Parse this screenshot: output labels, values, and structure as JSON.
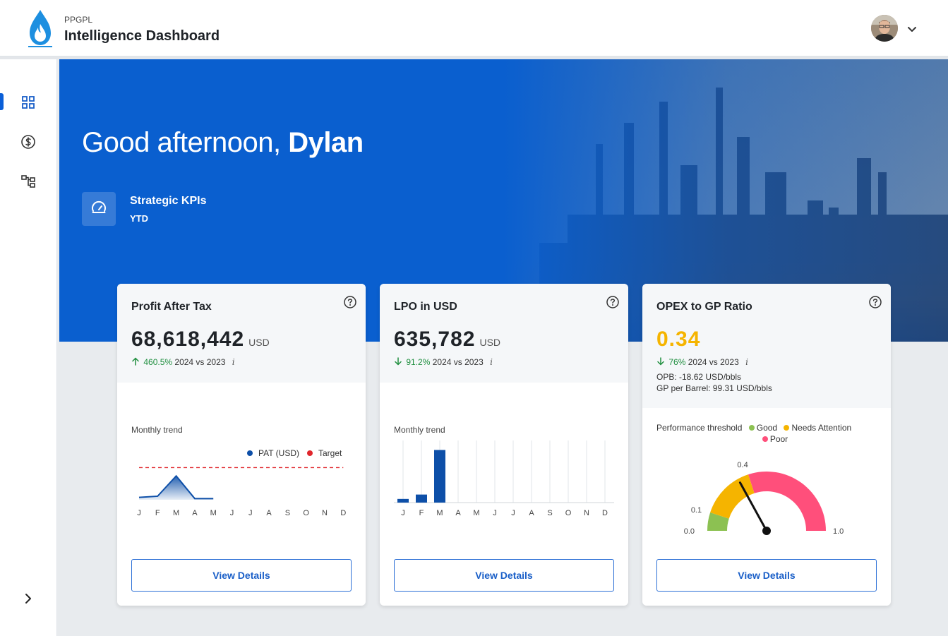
{
  "header": {
    "org": "PPGPL",
    "title": "Intelligence Dashboard"
  },
  "hero": {
    "greeting": "Good afternoon,",
    "name": "Dylan",
    "section_title": "Strategic KPIs",
    "section_period": "YTD"
  },
  "colors": {
    "brand_blue": "#0a5fcf",
    "accent_blue": "#1a5fc8",
    "good": "#8cc152",
    "needs_attention": "#f5b400",
    "poor": "#ff4f7b",
    "up_green": "#1e8e3e",
    "target_red": "#e0262c"
  },
  "cards": [
    {
      "title": "Profit After Tax",
      "value": "68,618,442",
      "unit": "USD",
      "delta_pct": "460.5%",
      "delta_direction": "up",
      "delta_text": "2024 vs 2023",
      "info": "i",
      "trend_label": "Monthly trend",
      "legend": [
        "PAT (USD)",
        "Target"
      ],
      "button": "View Details"
    },
    {
      "title": "LPO in USD",
      "value": "635,782",
      "unit": "USD",
      "delta_pct": "91.2%",
      "delta_direction": "down",
      "delta_text": "2024 vs 2023",
      "info": "i",
      "trend_label": "Monthly trend",
      "button": "View Details"
    },
    {
      "title": "OPEX to GP Ratio",
      "value": "0.34",
      "delta_pct": "76%",
      "delta_direction": "down",
      "delta_text": "2024 vs 2023",
      "info": "i",
      "opb": "OPB: -18.62 USD/bbls",
      "gp_per_barrel": "GP per Barrel: 99.31 USD/bbls",
      "threshold_label": "Performance threshold",
      "threshold_good": "Good",
      "threshold_attention": "Needs Attention",
      "threshold_poor": "Poor",
      "button": "View Details"
    }
  ],
  "chart_data": [
    {
      "type": "area",
      "title": "Monthly trend",
      "categories": [
        "J",
        "F",
        "M",
        "A",
        "M",
        "J",
        "J",
        "A",
        "S",
        "O",
        "N",
        "D"
      ],
      "series": [
        {
          "name": "PAT (USD)",
          "values": [
            0.1,
            0.15,
            1.0,
            0.05,
            0.05,
            null,
            null,
            null,
            null,
            null,
            null,
            null
          ]
        },
        {
          "name": "Target",
          "values": [
            1.35,
            1.35,
            1.35,
            1.35,
            1.35,
            1.35,
            1.35,
            1.35,
            1.35,
            1.35,
            1.35,
            1.35
          ]
        }
      ],
      "ylim": [
        0,
        1.6
      ]
    },
    {
      "type": "bar",
      "title": "Monthly trend",
      "categories": [
        "J",
        "F",
        "M",
        "A",
        "M",
        "J",
        "J",
        "A",
        "S",
        "O",
        "N",
        "D"
      ],
      "values": [
        5,
        11,
        72,
        0,
        0,
        0,
        0,
        0,
        0,
        0,
        0,
        0
      ],
      "ylim": [
        0,
        85
      ]
    },
    {
      "type": "gauge",
      "value": 0.34,
      "min": 0.0,
      "max": 1.0,
      "ticks": [
        "0.0",
        "0.1",
        "0.4",
        "1.0"
      ],
      "bands": [
        {
          "name": "Good",
          "from": 0.0,
          "to": 0.1
        },
        {
          "name": "Needs Attention",
          "from": 0.1,
          "to": 0.4
        },
        {
          "name": "Poor",
          "from": 0.4,
          "to": 1.0
        }
      ]
    }
  ]
}
